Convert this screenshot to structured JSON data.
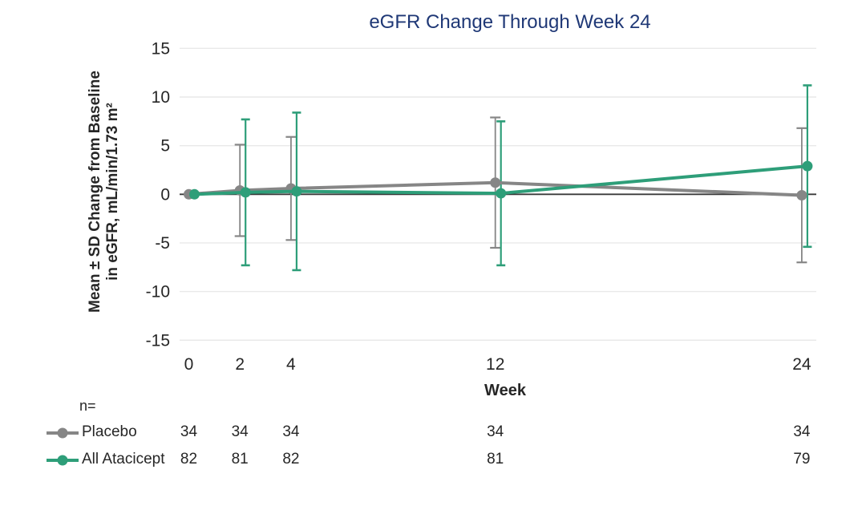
{
  "title": "eGFR Change Through Week 24",
  "colors": {
    "title": "#1F3876",
    "text": "#262626",
    "gridline": "#E9E9E9",
    "zero_line": "#3A3A3A",
    "placebo": "#868686",
    "atacicept": "#2E9E79"
  },
  "y_axis": {
    "label_line1": "Mean ± SD Change from Baseline",
    "label_line2": "in eGFR, mL/min/1.73 m²",
    "ticks": [
      15,
      10,
      5,
      0,
      -5,
      -10,
      -15
    ]
  },
  "x_axis": {
    "label": "Week",
    "ticks": [
      0,
      2,
      4,
      12,
      24
    ]
  },
  "legend": {
    "n_label": "n=",
    "series": [
      {
        "name": "Placebo",
        "n": [
          34,
          34,
          34,
          34,
          34
        ]
      },
      {
        "name": "All Atacicept",
        "n": [
          82,
          81,
          82,
          81,
          79
        ]
      }
    ]
  },
  "chart_data": {
    "type": "line",
    "title": "eGFR Change Through Week 24",
    "xlabel": "Week",
    "ylabel": "Mean ± SD Change from Baseline in eGFR, mL/min/1.73 m²",
    "x": [
      0,
      2,
      4,
      12,
      24
    ],
    "ylim": [
      -15,
      15
    ],
    "yticks": [
      15,
      10,
      5,
      0,
      -5,
      -10,
      -15
    ],
    "error_bars": "mean ± SD",
    "grid": "horizontal",
    "legend_position": "bottom-left table with n counts per week",
    "series": [
      {
        "name": "Placebo",
        "color": "#868686",
        "mean": [
          0.0,
          0.4,
          0.6,
          1.2,
          -0.1
        ],
        "sd": [
          0.0,
          4.7,
          5.3,
          6.7,
          6.9
        ],
        "n": [
          34,
          34,
          34,
          34,
          34
        ]
      },
      {
        "name": "All Atacicept",
        "color": "#2E9E79",
        "mean": [
          0.0,
          0.2,
          0.3,
          0.1,
          2.9
        ],
        "sd": [
          0.0,
          7.5,
          8.1,
          7.4,
          8.3
        ],
        "n": [
          82,
          81,
          82,
          81,
          79
        ]
      }
    ]
  }
}
